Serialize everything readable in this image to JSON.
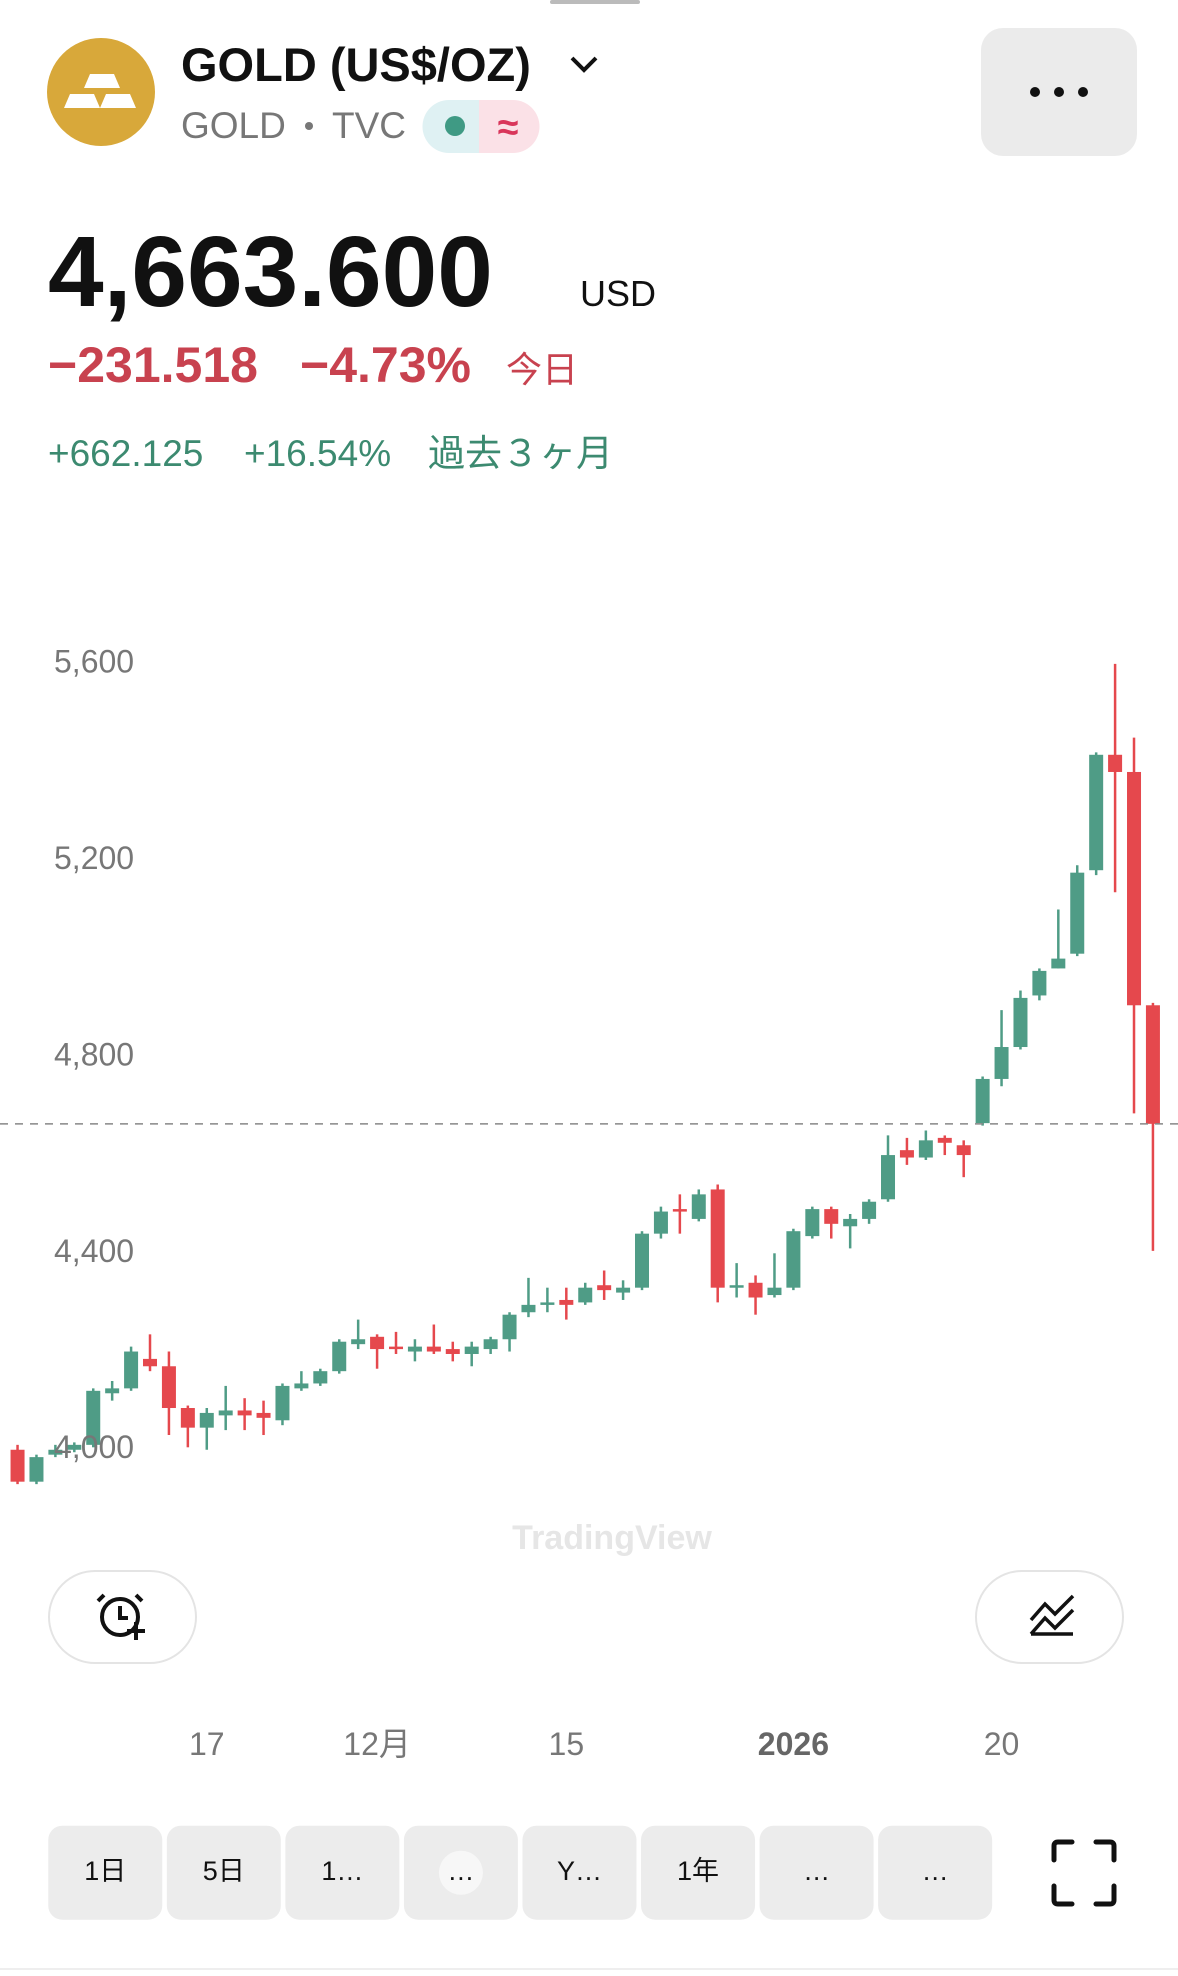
{
  "header": {
    "title": "GOLD (US$/OZ)",
    "symbol": "GOLD",
    "exchange": "TVC",
    "badge_symbol": "≈"
  },
  "quote": {
    "price": "4,663.600",
    "currency": "USD",
    "change": "−231.518",
    "change_percent": "−4.73%",
    "change_period": "今日",
    "period_change": "+662.125",
    "period_change_percent": "+16.54%",
    "period_label": "過去３ヶ月"
  },
  "watermark": "TradingView",
  "ranges": [
    "1日",
    "5日",
    "1…",
    "…",
    "Y…",
    "1年",
    "…",
    "…"
  ],
  "chart_data": {
    "type": "candlestick",
    "categories": [
      null,
      null,
      null,
      null,
      null,
      null,
      null,
      null,
      null,
      null,
      "17",
      null,
      null,
      null,
      null,
      null,
      null,
      null,
      null,
      "12月",
      null,
      null,
      null,
      null,
      null,
      null,
      null,
      null,
      null,
      "15",
      null,
      null,
      null,
      null,
      null,
      null,
      null,
      null,
      null,
      null,
      null,
      "2026",
      null,
      null,
      null,
      null,
      null,
      null,
      null,
      null,
      null,
      null,
      "20",
      null,
      null,
      null,
      null,
      null,
      null,
      null,
      null
    ],
    "open": [
      4000,
      3935,
      3990,
      4000,
      4010,
      4115,
      4125,
      4185,
      4170,
      4085,
      4045,
      4070,
      4080,
      4075,
      4060,
      4125,
      4135,
      4160,
      4215,
      4230,
      4210,
      4200,
      4210,
      4205,
      4195,
      4205,
      4225,
      4280,
      4295,
      4305,
      4300,
      4335,
      4320,
      4330,
      4440,
      4490,
      4470,
      4530,
      4330,
      4340,
      4315,
      4330,
      4435,
      4490,
      4455,
      4470,
      4510,
      4610,
      4595,
      4635,
      4620,
      4665,
      4755,
      4820,
      4925,
      4980,
      5010,
      5180,
      5415,
      5380,
      4905
    ],
    "high": [
      4010,
      3990,
      4010,
      4015,
      4125,
      4140,
      4210,
      4235,
      4200,
      4090,
      4085,
      4130,
      4105,
      4100,
      4135,
      4160,
      4165,
      4225,
      4265,
      4235,
      4240,
      4225,
      4255,
      4220,
      4220,
      4230,
      4280,
      4350,
      4330,
      4330,
      4340,
      4365,
      4345,
      4445,
      4495,
      4520,
      4530,
      4540,
      4380,
      4355,
      4400,
      4450,
      4495,
      4495,
      4480,
      4510,
      4640,
      4635,
      4650,
      4640,
      4630,
      4760,
      4895,
      4935,
      4980,
      5100,
      5190,
      5420,
      5600,
      5450,
      4910
    ],
    "low": [
      3930,
      3930,
      3985,
      3995,
      4005,
      4100,
      4120,
      4160,
      4030,
      4005,
      4000,
      4040,
      4040,
      4030,
      4050,
      4120,
      4130,
      4155,
      4205,
      4165,
      4195,
      4180,
      4195,
      4180,
      4170,
      4195,
      4200,
      4270,
      4280,
      4265,
      4295,
      4305,
      4305,
      4325,
      4430,
      4440,
      4465,
      4300,
      4310,
      4275,
      4310,
      4325,
      4430,
      4430,
      4410,
      4460,
      4505,
      4580,
      4590,
      4600,
      4555,
      4660,
      4740,
      4815,
      4915,
      4980,
      5005,
      5170,
      5135,
      4685,
      4405
    ],
    "close": [
      3935,
      3985,
      4000,
      4010,
      4120,
      4125,
      4200,
      4170,
      4085,
      4045,
      4075,
      4080,
      4070,
      4065,
      4130,
      4135,
      4160,
      4220,
      4225,
      4205,
      4205,
      4210,
      4200,
      4195,
      4210,
      4225,
      4275,
      4295,
      4300,
      4295,
      4330,
      4325,
      4330,
      4440,
      4485,
      4485,
      4520,
      4330,
      4335,
      4310,
      4330,
      4445,
      4490,
      4460,
      4470,
      4505,
      4600,
      4595,
      4630,
      4625,
      4600,
      4755,
      4820,
      4920,
      4975,
      5000,
      5175,
      5415,
      5380,
      4905,
      4663.6
    ],
    "up_color": "#4f9c86",
    "down_color": "#e5484d",
    "ylim": [
      3850,
      5750
    ],
    "yticks": [
      {
        "value": 4000,
        "label": "4,000"
      },
      {
        "value": 4400,
        "label": "4,400"
      },
      {
        "value": 4800,
        "label": "4,800"
      },
      {
        "value": 5200,
        "label": "5,200"
      },
      {
        "value": 5600,
        "label": "5,600"
      }
    ]
  }
}
